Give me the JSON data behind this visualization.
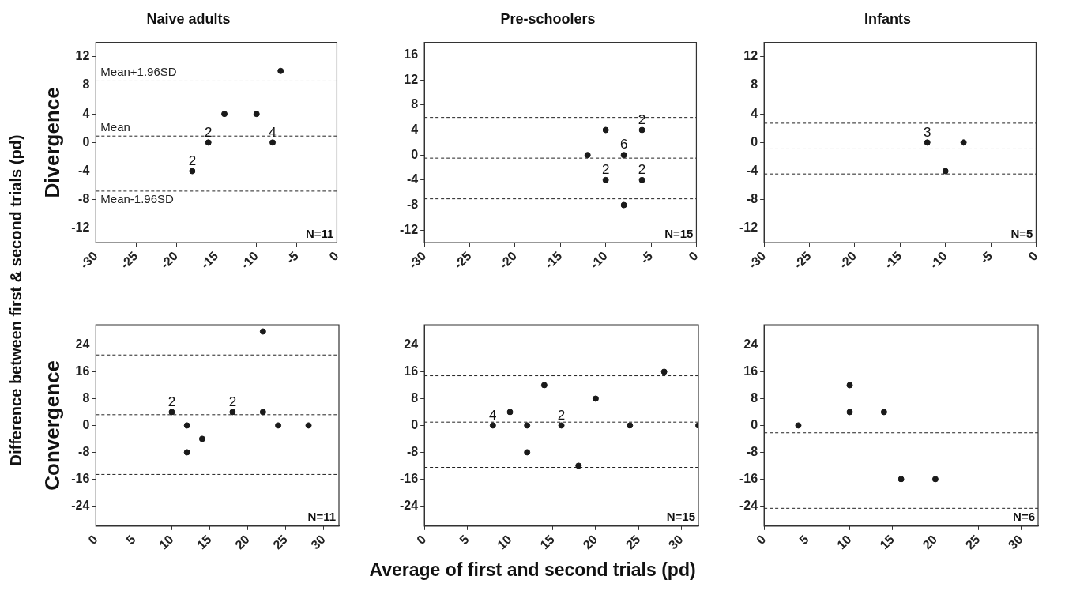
{
  "chart_data": [
    {
      "type": "scatter",
      "title": "Naive adults",
      "ylabel": "Divergence",
      "x": [
        -18,
        -16,
        -14,
        -10,
        -8,
        -7
      ],
      "values": [
        -4,
        0,
        4,
        4,
        0,
        10
      ],
      "color": "#1a1a1a",
      "marker": "circle",
      "grid": false,
      "xlim": [
        -30,
        0
      ],
      "xticks": [
        -30,
        -25,
        -20,
        -15,
        -10,
        -5,
        0
      ],
      "ylim": [
        -14,
        14
      ],
      "yticks": [
        -12,
        -8,
        -4,
        0,
        4,
        8,
        12
      ],
      "ref_lines": [
        {
          "axis": "y",
          "value": 8.6,
          "label": "Mean+1.96SD",
          "line_style": "dashed"
        },
        {
          "axis": "y",
          "value": 0.9,
          "label": "Mean",
          "line_style": "dashed"
        },
        {
          "axis": "y",
          "value": -6.8,
          "label": "Mean-1.96SD",
          "line_style": "dashed"
        }
      ],
      "annotations": [
        "N=11",
        {
          "text": "2",
          "x": -18,
          "y": -4
        },
        {
          "text": "2",
          "x": -16,
          "y": 0
        },
        {
          "text": "4",
          "x": -8,
          "y": 0
        }
      ]
    },
    {
      "type": "scatter",
      "title": "Pre-schoolers",
      "x": [
        -12,
        -10,
        -10,
        -8,
        -8,
        -6,
        -6
      ],
      "values": [
        0,
        4,
        -4,
        0,
        -8,
        4,
        -4
      ],
      "color": "#1a1a1a",
      "marker": "circle",
      "grid": false,
      "xlim": [
        -30,
        0
      ],
      "xticks": [
        -30,
        -25,
        -20,
        -15,
        -10,
        -5,
        0
      ],
      "ylim": [
        -14,
        18
      ],
      "yticks": [
        -12,
        -8,
        -4,
        0,
        4,
        8,
        12,
        16
      ],
      "ref_lines": [
        {
          "axis": "y",
          "value": 6,
          "line_style": "dashed"
        },
        {
          "axis": "y",
          "value": -0.5,
          "line_style": "dashed"
        },
        {
          "axis": "y",
          "value": -7,
          "line_style": "dashed"
        }
      ],
      "annotations": [
        "N=15",
        {
          "text": "2",
          "x": -10,
          "y": -4
        },
        {
          "text": "6",
          "x": -8,
          "y": 0
        },
        {
          "text": "2",
          "x": -6,
          "y": 4
        },
        {
          "text": "2",
          "x": -6,
          "y": -4
        }
      ]
    },
    {
      "type": "scatter",
      "title": "Infants",
      "x": [
        -12,
        -10,
        -8
      ],
      "values": [
        0,
        -4,
        0
      ],
      "color": "#1a1a1a",
      "marker": "circle",
      "grid": false,
      "xlim": [
        -30,
        0
      ],
      "xticks": [
        -30,
        -25,
        -20,
        -15,
        -10,
        -5,
        0
      ],
      "ylim": [
        -14,
        14
      ],
      "yticks": [
        -12,
        -8,
        -4,
        0,
        4,
        8,
        12
      ],
      "ref_lines": [
        {
          "axis": "y",
          "value": 2.7,
          "line_style": "dashed"
        },
        {
          "axis": "y",
          "value": -0.9,
          "line_style": "dashed"
        },
        {
          "axis": "y",
          "value": -4.4,
          "line_style": "dashed"
        }
      ],
      "annotations": [
        "N=5",
        {
          "text": "3",
          "x": -12,
          "y": 0
        }
      ]
    },
    {
      "type": "scatter",
      "ylabel": "Convergence",
      "x": [
        10,
        12,
        12,
        14,
        18,
        22,
        22,
        24,
        28
      ],
      "values": [
        4,
        0,
        -8,
        -4,
        4,
        28,
        4,
        0,
        0
      ],
      "color": "#1a1a1a",
      "marker": "circle",
      "grid": false,
      "xlim": [
        0,
        32
      ],
      "xticks": [
        0,
        5,
        10,
        15,
        20,
        25,
        30
      ],
      "ylim": [
        -30,
        30
      ],
      "yticks": [
        -24,
        -16,
        -8,
        0,
        8,
        16,
        24
      ],
      "ref_lines": [
        {
          "axis": "y",
          "value": 21,
          "line_style": "dashed"
        },
        {
          "axis": "y",
          "value": 3.2,
          "line_style": "dashed"
        },
        {
          "axis": "y",
          "value": -14.6,
          "line_style": "dashed"
        }
      ],
      "annotations": [
        "N=11",
        {
          "text": "2",
          "x": 10,
          "y": 4
        },
        {
          "text": "2",
          "x": 18,
          "y": 4
        }
      ]
    },
    {
      "type": "scatter",
      "x": [
        8,
        10,
        12,
        12,
        14,
        16,
        18,
        20,
        24,
        28,
        32
      ],
      "values": [
        0,
        4,
        0,
        -8,
        12,
        0,
        -12,
        8,
        0,
        16,
        0
      ],
      "color": "#1a1a1a",
      "marker": "circle",
      "grid": false,
      "xlim": [
        0,
        32
      ],
      "xticks": [
        0,
        5,
        10,
        15,
        20,
        25,
        30
      ],
      "ylim": [
        -30,
        30
      ],
      "yticks": [
        -24,
        -16,
        -8,
        0,
        8,
        16,
        24
      ],
      "ref_lines": [
        {
          "axis": "y",
          "value": 14.8,
          "line_style": "dashed"
        },
        {
          "axis": "y",
          "value": 1,
          "line_style": "dashed"
        },
        {
          "axis": "y",
          "value": -12.5,
          "line_style": "dashed"
        }
      ],
      "annotations": [
        "N=15",
        {
          "text": "4",
          "x": 8,
          "y": 0
        },
        {
          "text": "2",
          "x": 16,
          "y": 0
        }
      ]
    },
    {
      "type": "scatter",
      "x": [
        4,
        10,
        10,
        14,
        16,
        20
      ],
      "values": [
        0,
        12,
        4,
        4,
        -16,
        -16
      ],
      "color": "#1a1a1a",
      "marker": "circle",
      "grid": false,
      "xlim": [
        0,
        32
      ],
      "xticks": [
        0,
        5,
        10,
        15,
        20,
        25,
        30
      ],
      "ylim": [
        -30,
        30
      ],
      "yticks": [
        -24,
        -16,
        -8,
        0,
        8,
        16,
        24
      ],
      "ref_lines": [
        {
          "axis": "y",
          "value": 20.7,
          "line_style": "dashed"
        },
        {
          "axis": "y",
          "value": -2.2,
          "line_style": "dashed"
        },
        {
          "axis": "y",
          "value": -24.7,
          "line_style": "dashed"
        }
      ],
      "annotations": [
        "N=6"
      ]
    },
    {
      "type": "other",
      "xlabel": "Average of first and second trials (pd)",
      "ylabel": "Difference between first & second trials (pd)"
    }
  ]
}
